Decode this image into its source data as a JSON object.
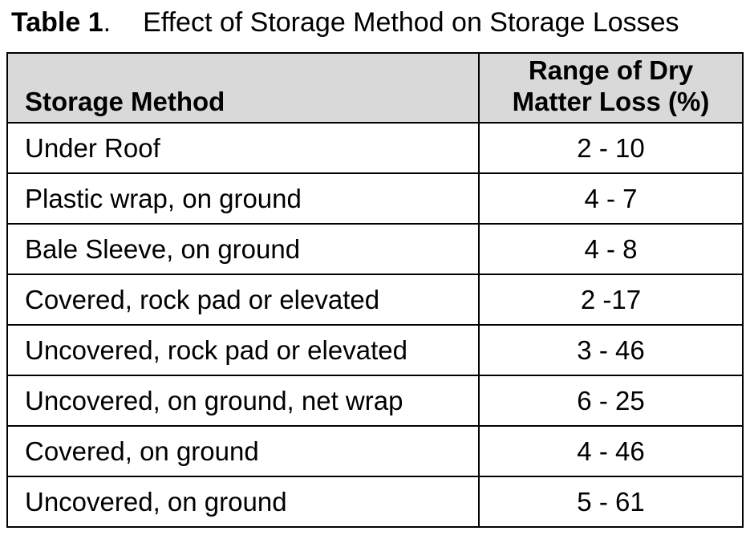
{
  "caption": {
    "label": "Table 1",
    "period": ".",
    "title": "Effect of Storage Method on Storage Losses"
  },
  "table": {
    "headers": {
      "method": "Storage Method",
      "loss_line1": "Range of Dry",
      "loss_line2": "Matter Loss (%)"
    },
    "rows": [
      {
        "method": "Under Roof",
        "loss": "2 - 10"
      },
      {
        "method": "Plastic wrap, on ground",
        "loss": "4 - 7"
      },
      {
        "method": "Bale Sleeve, on ground",
        "loss": "4 - 8"
      },
      {
        "method": "Covered, rock pad or elevated",
        "loss": "2 -17"
      },
      {
        "method": "Uncovered, rock pad or elevated",
        "loss": "3 - 46"
      },
      {
        "method": "Uncovered, on ground, net wrap",
        "loss": "6 - 25"
      },
      {
        "method": "Covered, on ground",
        "loss": "4 - 46"
      },
      {
        "method": "Uncovered, on ground",
        "loss": "5 - 61"
      }
    ]
  }
}
